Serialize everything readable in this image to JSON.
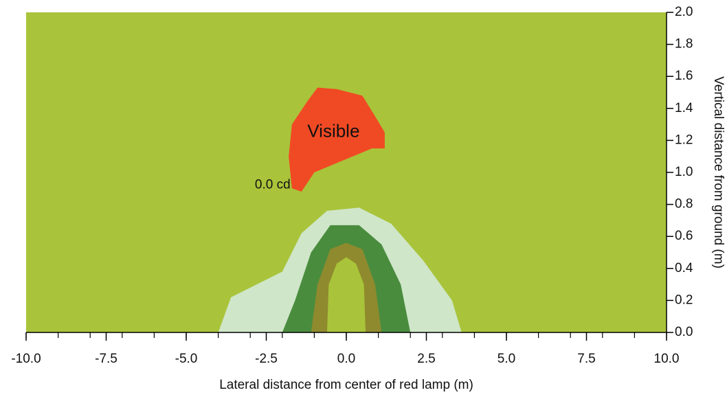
{
  "chart_data": {
    "type": "contour",
    "xlabel": "Lateral distance from center of red lamp (m)",
    "ylabel": "Vertical distance from ground (m)",
    "xlim": [
      -10,
      10
    ],
    "ylim": [
      0,
      2.0
    ],
    "x_ticks": [
      -10,
      -7.5,
      -5,
      -2.5,
      0,
      2.5,
      5,
      7.5,
      10
    ],
    "x_tick_labels": [
      "-10.0",
      "-7.5",
      "-5.0",
      "-2.5",
      "0.0",
      "2.5",
      "5.0",
      "7.5",
      "10.0"
    ],
    "x_minor_step": 1.0,
    "y_ticks": [
      0,
      0.2,
      0.4,
      0.6,
      0.8,
      1.0,
      1.2,
      1.4,
      1.6,
      1.8,
      2.0
    ],
    "y_tick_labels": [
      "0.0",
      "0.2",
      "0.4",
      "0.6",
      "0.8",
      "1.0",
      "1.2",
      "1.4",
      "1.6",
      "1.8",
      "2.0"
    ],
    "y_axis_side": "right",
    "grid": false,
    "background_color": "#a9c43a",
    "regions": [
      {
        "color": "#cfe6c9",
        "points": [
          [
            -4.0,
            0
          ],
          [
            -3.6,
            0.22
          ],
          [
            -2.0,
            0.38
          ],
          [
            -1.4,
            0.62
          ],
          [
            -0.6,
            0.76
          ],
          [
            0.4,
            0.78
          ],
          [
            1.4,
            0.68
          ],
          [
            2.4,
            0.45
          ],
          [
            3.3,
            0.2
          ],
          [
            3.6,
            0
          ]
        ]
      },
      {
        "color": "#4a8c3e",
        "points": [
          [
            -2.0,
            0
          ],
          [
            -1.6,
            0.2
          ],
          [
            -1.1,
            0.5
          ],
          [
            -0.5,
            0.67
          ],
          [
            0.4,
            0.67
          ],
          [
            1.1,
            0.55
          ],
          [
            1.7,
            0.3
          ],
          [
            2.0,
            0
          ]
        ]
      },
      {
        "color": "#8f8a2e",
        "points": [
          [
            -1.1,
            0
          ],
          [
            -0.9,
            0.3
          ],
          [
            -0.5,
            0.52
          ],
          [
            0,
            0.56
          ],
          [
            0.5,
            0.52
          ],
          [
            0.9,
            0.3
          ],
          [
            1.1,
            0
          ]
        ]
      },
      {
        "color": "#a9c43a",
        "points": [
          [
            -0.6,
            0
          ],
          [
            -0.55,
            0.3
          ],
          [
            -0.3,
            0.43
          ],
          [
            0,
            0.47
          ],
          [
            0.3,
            0.43
          ],
          [
            0.55,
            0.3
          ],
          [
            0.6,
            0
          ]
        ]
      },
      {
        "color": "#f04a24",
        "points": [
          [
            -1.7,
            0.9
          ],
          [
            -1.4,
            0.88
          ],
          [
            -1.0,
            1.0
          ],
          [
            0.2,
            1.1
          ],
          [
            0.8,
            1.15
          ],
          [
            1.2,
            1.15
          ],
          [
            1.2,
            1.25
          ],
          [
            0.9,
            1.35
          ],
          [
            0.5,
            1.48
          ],
          [
            -0.3,
            1.52
          ],
          [
            -0.9,
            1.53
          ],
          [
            -1.2,
            1.45
          ],
          [
            -1.7,
            1.3
          ],
          [
            -1.8,
            1.1
          ]
        ]
      }
    ],
    "annotations": [
      {
        "text": "Visible",
        "x": -0.4,
        "y": 1.25
      },
      {
        "text": "0.0 cd",
        "x": -2.3,
        "y": 0.92
      }
    ]
  }
}
